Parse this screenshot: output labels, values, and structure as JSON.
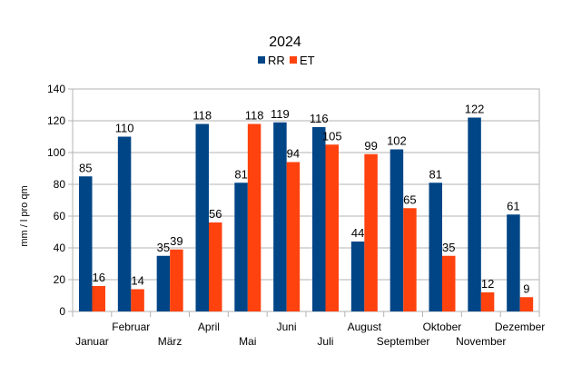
{
  "chart_data": {
    "type": "bar",
    "title": "2024",
    "ylabel": "mm / l pro qm",
    "xlabel": "",
    "ylim": [
      0,
      140
    ],
    "yticks": [
      0,
      20,
      40,
      60,
      80,
      100,
      120,
      140
    ],
    "grid": true,
    "legend_position": "top",
    "categories": [
      "Januar",
      "Februar",
      "März",
      "April",
      "Mai",
      "Juni",
      "Juli",
      "August",
      "September",
      "Oktober",
      "November",
      "Dezember"
    ],
    "series": [
      {
        "name": "RR",
        "color": "#004586",
        "values": [
          85,
          110,
          35,
          118,
          81,
          119,
          116,
          44,
          102,
          81,
          122,
          61
        ]
      },
      {
        "name": "ET",
        "color": "#ff420e",
        "values": [
          16,
          14,
          39,
          56,
          118,
          94,
          105,
          99,
          65,
          35,
          12,
          9
        ]
      }
    ]
  }
}
